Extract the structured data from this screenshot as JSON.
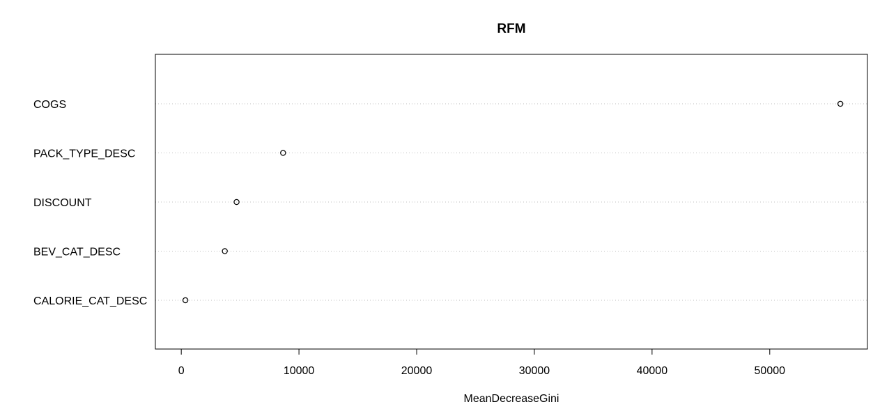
{
  "chart_data": {
    "type": "scatter",
    "title": "RFM",
    "xlabel": "MeanDecreaseGini",
    "ylabel": "",
    "categories": [
      "COGS",
      "PACK_TYPE_DESC",
      "DISCOUNT",
      "BEV_CAT_DESC",
      "CALORIE_CAT_DESC"
    ],
    "values": [
      56000,
      8650,
      4700,
      3700,
      350
    ],
    "xlim": [
      -2200,
      58300
    ],
    "xticks": [
      0,
      10000,
      20000,
      30000,
      40000,
      50000
    ],
    "xtick_labels": [
      "0",
      "10000",
      "20000",
      "30000",
      "40000",
      "50000"
    ],
    "grid": "dotted horizontal lines per variable",
    "colors": {
      "points": "#000000",
      "gridlines": "#bebebe",
      "frame": "#000000"
    }
  }
}
